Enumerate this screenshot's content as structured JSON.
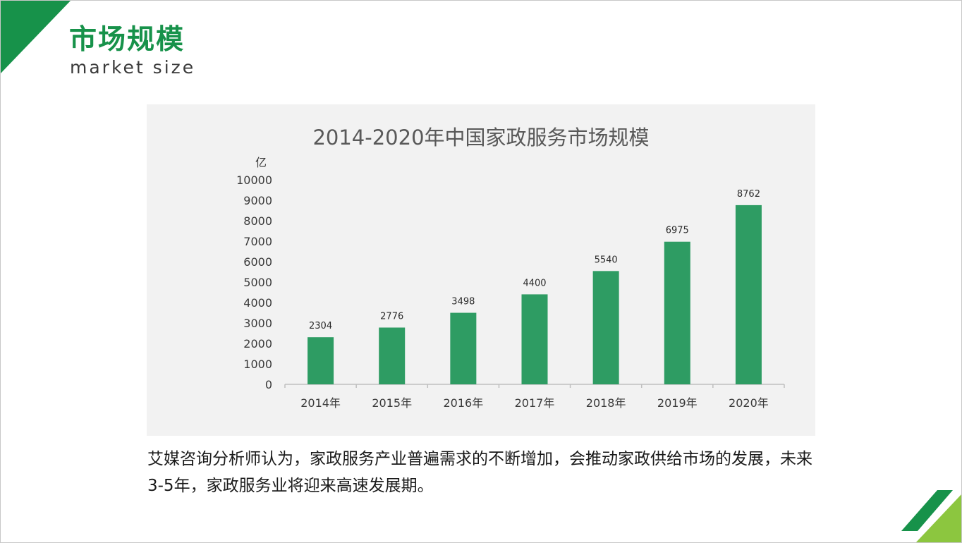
{
  "header": {
    "title_cn": "市场规模",
    "title_en": "market size"
  },
  "colors": {
    "brand_green": "#17924a",
    "bar_green": "#2e9c63",
    "light_green": "#8cc63f",
    "panel_bg": "#f2f2f2"
  },
  "chart_data": {
    "type": "bar",
    "title": "2014-2020年中国家政服务市场规模",
    "ylabel": "亿",
    "xlabel": "",
    "categories": [
      "2014年",
      "2015年",
      "2016年",
      "2017年",
      "2018年",
      "2019年",
      "2020年"
    ],
    "values": [
      2304,
      2776,
      3498,
      4400,
      5540,
      6975,
      8762
    ],
    "ylim": [
      0,
      10000
    ],
    "yticks": [
      0,
      1000,
      2000,
      3000,
      4000,
      5000,
      6000,
      7000,
      8000,
      9000,
      10000
    ],
    "grid": false,
    "legend": "none",
    "data_labels": true
  },
  "caption": "艾媒咨询分析师认为，家政服务产业普遍需求的不断增加，会推动家政供给市场的发展，未来3-5年，家政服务业将迎来高速发展期。"
}
